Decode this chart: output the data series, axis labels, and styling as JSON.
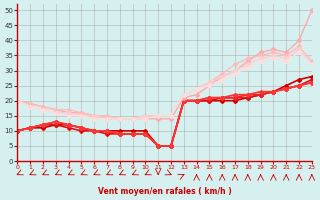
{
  "xlabel": "Vent moyen/en rafales ( km/h )",
  "ylabel": "",
  "xlim": [
    0,
    23
  ],
  "ylim": [
    0,
    52
  ],
  "yticks": [
    0,
    5,
    10,
    15,
    20,
    25,
    30,
    35,
    40,
    45,
    50
  ],
  "xticks": [
    0,
    1,
    2,
    3,
    4,
    5,
    6,
    7,
    8,
    9,
    10,
    11,
    12,
    13,
    14,
    15,
    16,
    17,
    18,
    19,
    20,
    21,
    22,
    23
  ],
  "bg_color": "#d6f0f0",
  "grid_color": "#aaaaaa",
  "series": [
    {
      "x": [
        0,
        1,
        2,
        3,
        4,
        5,
        6,
        7,
        8,
        9,
        10,
        11,
        12,
        13,
        14,
        15,
        16,
        17,
        18,
        19,
        20,
        21,
        22,
        23
      ],
      "y": [
        10,
        11,
        11,
        12,
        12,
        11,
        10,
        10,
        10,
        10,
        10,
        5,
        5,
        20,
        20,
        20,
        20,
        20,
        21,
        22,
        23,
        25,
        27,
        28
      ],
      "color": "#cc0000",
      "lw": 1.2,
      "marker": "D",
      "ms": 2
    },
    {
      "x": [
        0,
        1,
        2,
        3,
        4,
        5,
        6,
        7,
        8,
        9,
        10,
        11,
        12,
        13,
        14,
        15,
        16,
        17,
        18,
        19,
        20,
        21,
        22,
        23
      ],
      "y": [
        10,
        11,
        12,
        12,
        11,
        10,
        10,
        9,
        9,
        9,
        9,
        5,
        5,
        20,
        20,
        20,
        21,
        21,
        21,
        22,
        23,
        24,
        25,
        27
      ],
      "color": "#dd1111",
      "lw": 1.2,
      "marker": "D",
      "ms": 2
    },
    {
      "x": [
        0,
        1,
        2,
        3,
        4,
        5,
        6,
        7,
        8,
        9,
        10,
        11,
        12,
        13,
        14,
        15,
        16,
        17,
        18,
        19,
        20,
        21,
        22,
        23
      ],
      "y": [
        10,
        11,
        12,
        13,
        12,
        11,
        10,
        10,
        9,
        9,
        9,
        5,
        5,
        20,
        20,
        21,
        21,
        21,
        22,
        22,
        23,
        24,
        25,
        26
      ],
      "color": "#ee2222",
      "lw": 1.2,
      "marker": "D",
      "ms": 2
    },
    {
      "x": [
        0,
        1,
        2,
        3,
        4,
        5,
        6,
        7,
        8,
        9,
        10,
        11,
        12,
        13,
        14,
        15,
        16,
        17,
        18,
        19,
        20,
        21,
        22,
        23
      ],
      "y": [
        10,
        11,
        12,
        13,
        12,
        11,
        10,
        10,
        9,
        9,
        9,
        5,
        5,
        20,
        20,
        21,
        21,
        22,
        22,
        23,
        23,
        24,
        25,
        26
      ],
      "color": "#ff3333",
      "lw": 1.2,
      "marker": "D",
      "ms": 2
    },
    {
      "x": [
        0,
        1,
        2,
        3,
        4,
        5,
        6,
        7,
        8,
        9,
        10,
        11,
        12,
        13,
        14,
        15,
        16,
        17,
        18,
        19,
        20,
        21,
        22,
        23
      ],
      "y": [
        20,
        19,
        18,
        17,
        16,
        16,
        15,
        14,
        14,
        14,
        14,
        14,
        14,
        21,
        22,
        25,
        28,
        30,
        33,
        36,
        37,
        36,
        40,
        50
      ],
      "color": "#ffaaaa",
      "lw": 1.0,
      "marker": "D",
      "ms": 2
    },
    {
      "x": [
        0,
        1,
        2,
        3,
        4,
        5,
        6,
        7,
        8,
        9,
        10,
        11,
        12,
        13,
        14,
        15,
        16,
        17,
        18,
        19,
        20,
        21,
        22,
        23
      ],
      "y": [
        20,
        19,
        18,
        17,
        17,
        16,
        15,
        15,
        14,
        14,
        15,
        15,
        15,
        22,
        24,
        26,
        29,
        32,
        34,
        35,
        36,
        35,
        38,
        33
      ],
      "color": "#ffbbbb",
      "lw": 1.0,
      "marker": "D",
      "ms": 2
    },
    {
      "x": [
        0,
        1,
        2,
        3,
        4,
        5,
        6,
        7,
        8,
        9,
        10,
        11,
        12,
        13,
        14,
        15,
        16,
        17,
        18,
        19,
        20,
        21,
        22,
        23
      ],
      "y": [
        20,
        18,
        17,
        16,
        16,
        15,
        15,
        14,
        14,
        14,
        15,
        15,
        15,
        22,
        24,
        26,
        28,
        30,
        32,
        34,
        35,
        34,
        37,
        32
      ],
      "color": "#ffcccc",
      "lw": 1.0,
      "marker": "D",
      "ms": 2
    },
    {
      "x": [
        0,
        1,
        2,
        3,
        4,
        5,
        6,
        7,
        8,
        9,
        10,
        11,
        12,
        13,
        14,
        15,
        16,
        17,
        18,
        19,
        20,
        21,
        22,
        23
      ],
      "y": [
        20,
        18,
        17,
        16,
        15,
        15,
        14,
        14,
        14,
        14,
        14,
        15,
        15,
        22,
        24,
        25,
        27,
        29,
        31,
        33,
        34,
        33,
        36,
        32
      ],
      "color": "#ffdddd",
      "lw": 1.0,
      "marker": "D",
      "ms": 2
    }
  ],
  "wind_arrows": {
    "x": [
      0,
      1,
      2,
      3,
      4,
      5,
      6,
      7,
      8,
      9,
      10,
      11,
      12,
      13,
      14,
      15,
      16,
      17,
      18,
      19,
      20,
      21,
      22,
      23
    ],
    "angles": [
      225,
      225,
      225,
      225,
      225,
      225,
      225,
      225,
      225,
      225,
      225,
      180,
      135,
      45,
      0,
      0,
      0,
      0,
      0,
      0,
      0,
      0,
      0,
      0
    ]
  }
}
